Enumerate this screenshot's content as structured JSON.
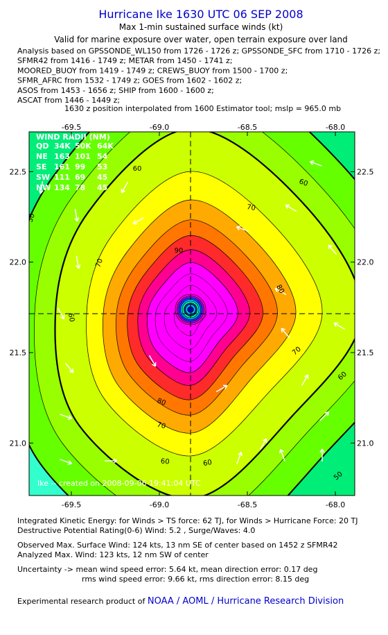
{
  "header": {
    "title": "Hurricane Ike 1630 UTC 06 SEP 2008",
    "subtitle": "Max 1-min sustained surface winds (kt)",
    "validity": "Valid for marine exposure over water, open terrain exposure over land",
    "analysis_lines": [
      "Analysis based on  GPSSONDE_WL150 from 1726 - 1726 z;  GPSSONDE_SFC from 1710 - 1726 z;",
      "SFMR42 from 1416 - 1749 z;  METAR from 1450 - 1741 z;",
      "MOORED_BUOY from 1419 - 1749 z;  CREWS_BUOY from 1500 - 1700 z;",
      "SFMR_AFRC from 1532 - 1749 z;  GOES from 1602 - 1602 z;",
      "ASOS from 1453 - 1656 z;  SHIP from 1600 - 1600 z;",
      "ASCAT from 1446 - 1449 z;"
    ],
    "position_note": "1630 z position interpolated from 1600 Estimator tool; mslp = 965.0 mb"
  },
  "map": {
    "xlim": [
      -69.74,
      -67.89
    ],
    "ylim": [
      20.71,
      22.72
    ],
    "xticks": [
      -69.5,
      {
        "value": -69.0,
        "label": "-69.0"
      },
      -68.5,
      {
        "value": -68.0,
        "label": "-68.0"
      }
    ],
    "yticks": [
      22.5,
      {
        "value": 22.0,
        "label": "22.0"
      },
      21.5,
      {
        "value": 21.0,
        "label": "21.0"
      }
    ],
    "wind_radii": {
      "title": "WIND RADII (NM)",
      "header": [
        "QD",
        "34K",
        "50K",
        "64K"
      ],
      "rows": [
        [
          "NE",
          "163",
          "101",
          "54"
        ],
        [
          "SE",
          "161",
          "99",
          "53"
        ],
        [
          "SW",
          "111",
          "69",
          "45"
        ],
        [
          "NW",
          "134",
          "78",
          "45"
        ]
      ]
    },
    "contour_labels": [
      60,
      60,
      70,
      50,
      70,
      90,
      80,
      60,
      70,
      60,
      80,
      70,
      60,
      60,
      50
    ],
    "credit": "Ike -- created on 2008-09-06 19:41:04 UTC"
  },
  "footer": {
    "lines": [
      "Integrated Kinetic Energy:  for Winds > TS force: 62 TJ,  for Winds > Hurricane Force: 20 TJ",
      "Destructive Potential Rating(0-6)   Wind: 5.2 , Surge/Waves: 4.0",
      "Observed Max. Surface Wind: 124 kts, 13 nm SE of center based on 1452 z SFMR42",
      "Analyzed Max. Wind: 123 kts, 12 nm SW of center",
      "Uncertainty -> mean wind speed error: 5.64 kt,   mean direction error: 0.17 deg",
      "rms wind speed error: 9.66 kt,   rms direction error: 8.15 deg"
    ],
    "credit_prefix": "Experimental research product of ",
    "credit_org": "NOAA / AOML / Hurricane Research Division"
  }
}
